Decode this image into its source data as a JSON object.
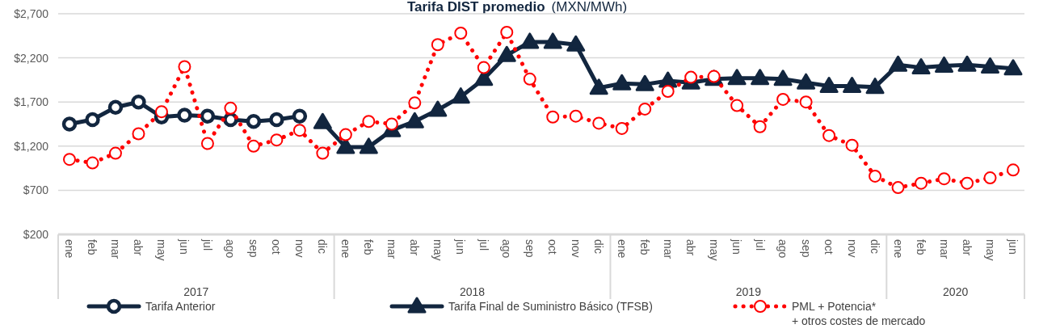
{
  "chart_data": {
    "type": "line",
    "title": "Tarifa DIST promedio",
    "subtitle": "(MXN/MWh)",
    "categories": [
      "ene",
      "feb",
      "mar",
      "abr",
      "may",
      "jun",
      "jul",
      "ago",
      "sep",
      "oct",
      "nov",
      "dic",
      "ene",
      "feb",
      "mar",
      "abr",
      "may",
      "jun",
      "jul",
      "ago",
      "sep",
      "oct",
      "nov",
      "dic",
      "ene",
      "feb",
      "mar",
      "abr",
      "may",
      "jun",
      "jul",
      "ago",
      "sep",
      "oct",
      "nov",
      "dic",
      "ene",
      "feb",
      "mar",
      "abr",
      "may",
      "jun"
    ],
    "annotations": [
      "2017",
      "2018",
      "2019",
      "2020"
    ],
    "ylim": [
      200,
      2700
    ],
    "yticks": [
      {
        "value": 200,
        "label": "$200"
      },
      {
        "value": 700,
        "label": "$700"
      },
      {
        "value": 1200,
        "label": "$1,200"
      },
      {
        "value": 1700,
        "label": "$1,700"
      },
      {
        "value": 2200,
        "label": "$2,200"
      },
      {
        "value": 2700,
        "label": "$2,700"
      }
    ],
    "grid": "y",
    "legend": "bottom",
    "series": [
      {
        "name": "Tarifa Anterior",
        "color": "#12263f",
        "marker": "circle",
        "line_style": "solid",
        "values": [
          1450,
          1500,
          1640,
          1700,
          1530,
          1550,
          1540,
          1500,
          1480,
          1500,
          1540,
          null,
          null,
          null,
          null,
          null,
          null,
          null,
          null,
          null,
          null,
          null,
          null,
          null,
          null,
          null,
          null,
          null,
          null,
          null,
          null,
          null,
          null,
          null,
          null,
          null,
          null,
          null,
          null,
          null,
          null,
          null
        ]
      },
      {
        "name": "Tarifa Final de Suministro Básico (TFSB)",
        "color": "#12263f",
        "marker": "triangle",
        "line_style": "solid",
        "values": [
          null,
          null,
          null,
          null,
          null,
          null,
          null,
          null,
          null,
          null,
          null,
          1470,
          1190,
          1190,
          1380,
          1480,
          1610,
          1760,
          1960,
          2230,
          2380,
          2380,
          2350,
          1860,
          1910,
          1900,
          1940,
          1920,
          1960,
          1970,
          1970,
          1960,
          1920,
          1880,
          1880,
          1870,
          2120,
          2090,
          2110,
          2120,
          2100,
          2080
        ]
      },
      {
        "name": "PML + Potencia* + otros costes de mercado",
        "color": "#ff0000",
        "marker": "circle",
        "line_style": "dotted",
        "values": [
          1050,
          1010,
          1120,
          1340,
          1590,
          2100,
          1230,
          1630,
          1200,
          1270,
          1380,
          1120,
          1330,
          1480,
          1450,
          1690,
          2350,
          2480,
          2090,
          2490,
          1960,
          1530,
          1540,
          1460,
          1400,
          1620,
          1820,
          1980,
          1990,
          1660,
          1420,
          1730,
          1700,
          1320,
          1210,
          860,
          730,
          780,
          830,
          780,
          840,
          930
        ]
      }
    ]
  }
}
